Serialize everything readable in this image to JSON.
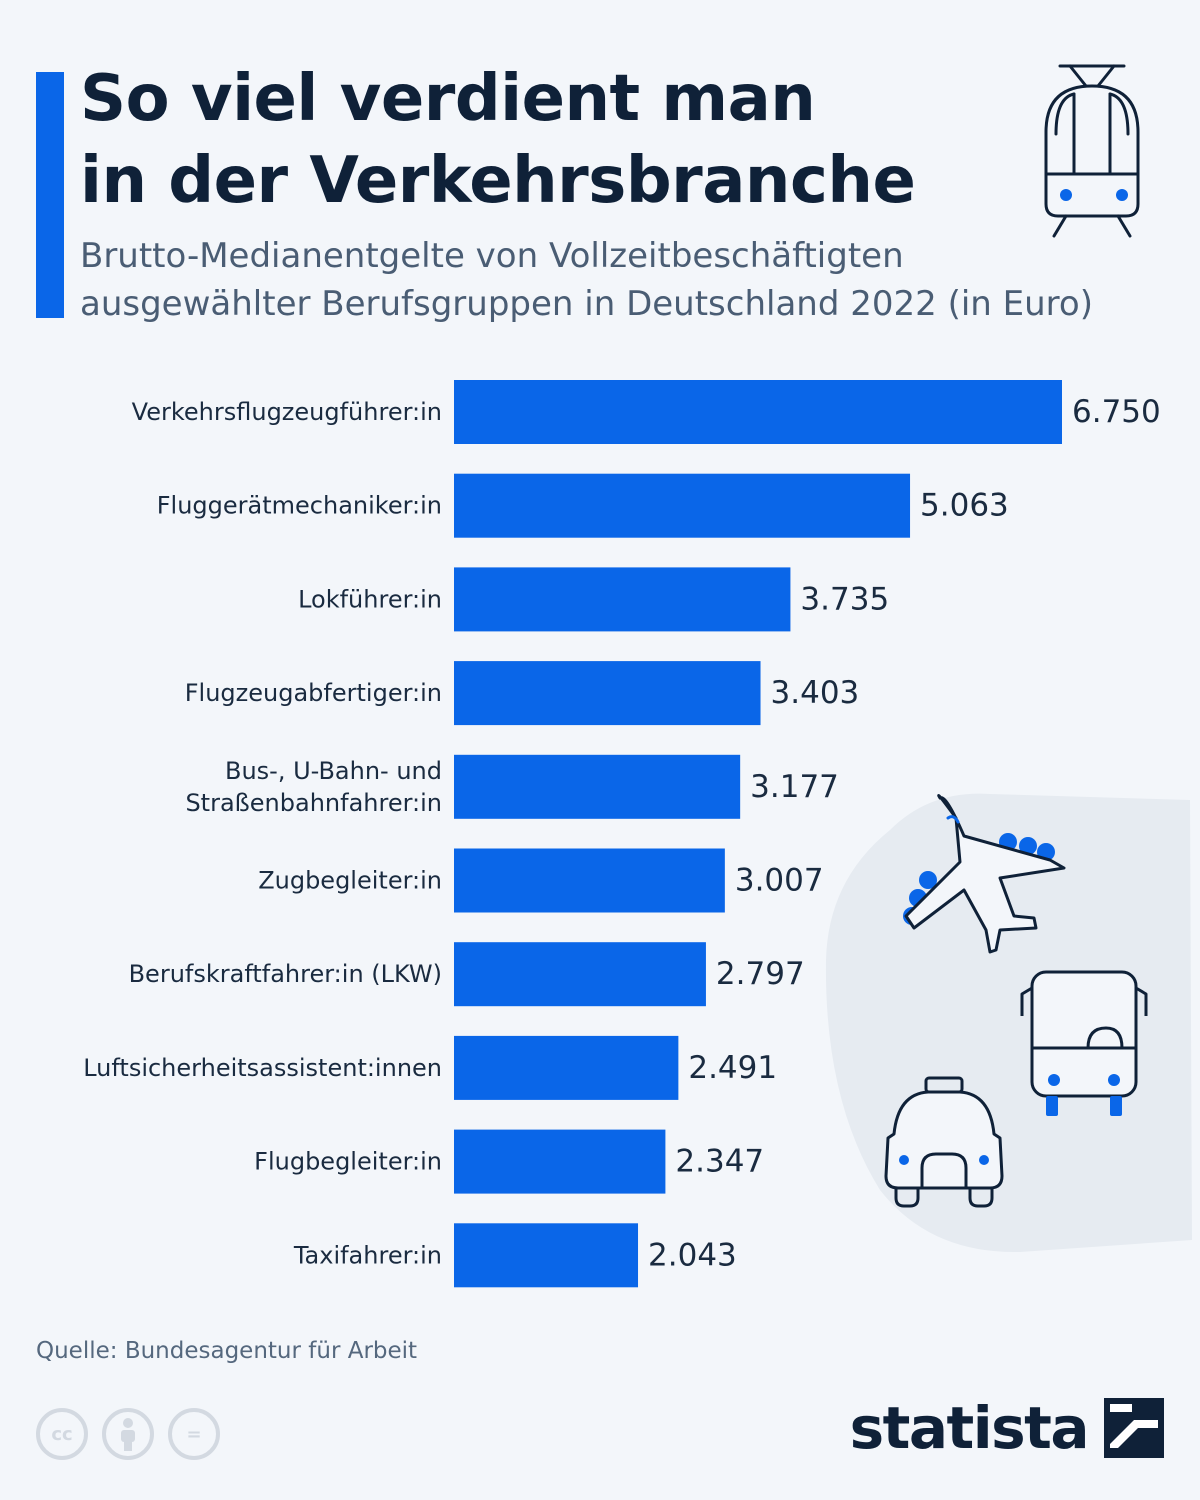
{
  "header": {
    "title_lines": [
      "So viel verdient man",
      "in der Verkehrsbranche"
    ],
    "subtitle_lines": [
      "Brutto-Medianentgelte von Vollzeitbeschäftigten",
      "ausgewählter Berufsgruppen in Deutschland 2022 (in Euro)"
    ]
  },
  "chart_data": {
    "type": "bar",
    "orientation": "horizontal",
    "categories": [
      "Verkehrsflugzeugführer:in",
      "Fluggerätmechaniker:in",
      "Lokführer:in",
      "Flugzeugabfertiger:in",
      "Bus-, U-Bahn- und Straßenbahnfahrer:in",
      "Zugbegleiter:in",
      "Berufskraftfahrer:in (LKW)",
      "Luftsicherheitsassistent:innen",
      "Flugbegleiter:in",
      "Taxifahrer:in"
    ],
    "category_lines": [
      [
        "Verkehrsflugzeugführer:in"
      ],
      [
        "Fluggerätmechaniker:in"
      ],
      [
        "Lokführer:in"
      ],
      [
        "Flugzeugabfertiger:in"
      ],
      [
        "Bus-, U-Bahn- und",
        "Straßenbahnfahrer:in"
      ],
      [
        "Zugbegleiter:in"
      ],
      [
        "Berufskraftfahrer:in (LKW)"
      ],
      [
        "Luftsicherheitsassistent:innen"
      ],
      [
        "Flugbegleiter:in"
      ],
      [
        "Taxifahrer:in"
      ]
    ],
    "values": [
      6750,
      5063,
      3735,
      3403,
      3177,
      3007,
      2797,
      2491,
      2347,
      2043
    ],
    "value_labels": [
      "6.750",
      "5.063",
      "3.735",
      "3.403",
      "3.177",
      "3.007",
      "2.797",
      "2.491",
      "2.347",
      "2.043"
    ],
    "xlim": [
      0,
      6750
    ],
    "grid": false,
    "legend": "none",
    "bar_color": "#0a66e8"
  },
  "footer": {
    "source": "Quelle: Bundesagentur für Arbeit",
    "license_icons": [
      "cc-icon",
      "attribution-icon",
      "no-derivatives-icon"
    ],
    "license_cc_text": "cc",
    "license_nd_text": "=",
    "brand": "statista"
  },
  "colors": {
    "accent": "#0a66e8",
    "title": "#0f2138",
    "subtitle": "#4a5d74",
    "background": "#f3f6fa"
  },
  "icons": {
    "header": "tram-icon",
    "decorations": [
      "airplane-icon",
      "bus-icon",
      "taxi-icon"
    ]
  }
}
